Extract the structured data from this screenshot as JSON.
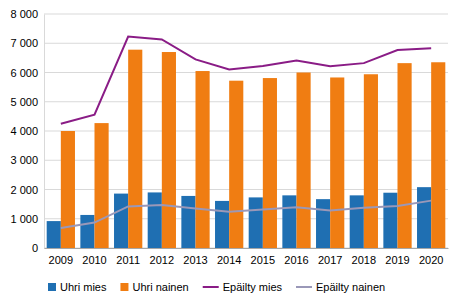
{
  "chart_data": {
    "type": "bar",
    "categories": [
      "2009",
      "2010",
      "2011",
      "2012",
      "2013",
      "2014",
      "2015",
      "2016",
      "2017",
      "2018",
      "2019",
      "2020"
    ],
    "series": [
      {
        "name": "Uhri mies",
        "type": "bar",
        "color": "#1f6fb2",
        "values": [
          920,
          1130,
          1860,
          1900,
          1780,
          1610,
          1730,
          1800,
          1670,
          1800,
          1890,
          2080
        ]
      },
      {
        "name": "Uhri nainen",
        "type": "bar",
        "color": "#f07d12",
        "values": [
          4000,
          4270,
          6780,
          6700,
          6050,
          5720,
          5810,
          6000,
          5830,
          5940,
          6320,
          6350
        ]
      },
      {
        "name": "Epäilty mies",
        "type": "line",
        "color": "#8a1c86",
        "values": [
          4250,
          4560,
          7230,
          7130,
          6450,
          6100,
          6220,
          6410,
          6210,
          6320,
          6770,
          6830
        ]
      },
      {
        "name": "Epäilty nainen",
        "type": "line",
        "color": "#9a98b8",
        "values": [
          680,
          870,
          1420,
          1470,
          1350,
          1240,
          1320,
          1390,
          1280,
          1380,
          1440,
          1620
        ]
      }
    ],
    "ylim": [
      0,
      8000
    ],
    "yticks": [
      0,
      {
        "value": 1000,
        "label": "1 000"
      },
      {
        "value": 2000,
        "label": "2 000"
      },
      {
        "value": 3000,
        "label": "3 000"
      },
      {
        "value": 4000,
        "label": "4 000"
      },
      {
        "value": 5000,
        "label": "5 000"
      },
      {
        "value": 6000,
        "label": "6 000"
      },
      {
        "value": 7000,
        "label": "7 000"
      },
      {
        "value": 8000,
        "label": "8 000"
      }
    ],
    "grid": true,
    "legend": "bottom"
  }
}
